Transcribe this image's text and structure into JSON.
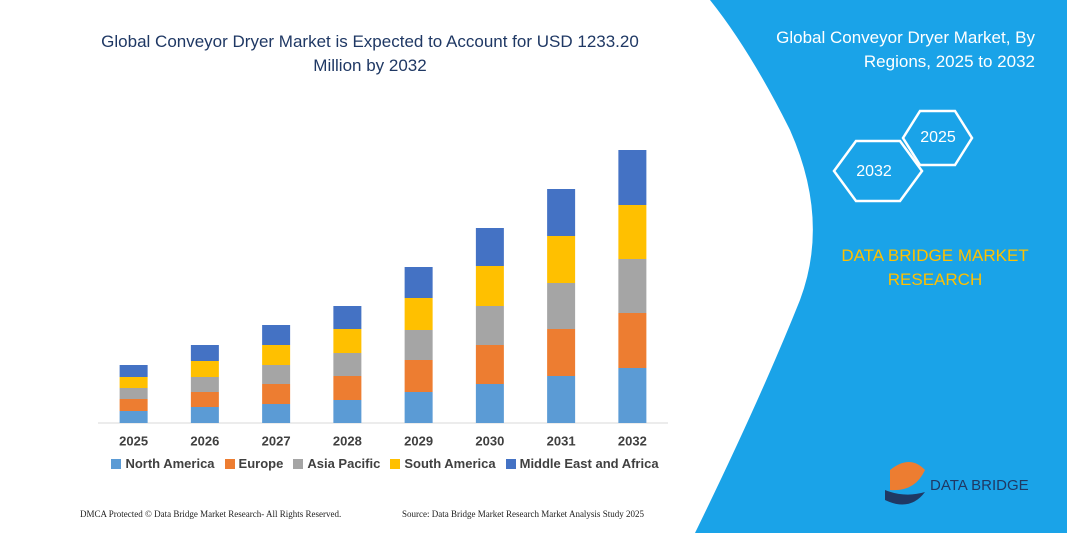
{
  "chart_data": {
    "type": "bar",
    "stacked": true,
    "title": "Global Conveyor Dryer Market is Expected to Account for USD 1233.20 Million by 2032",
    "categories": [
      "2025",
      "2026",
      "2027",
      "2028",
      "2029",
      "2030",
      "2031",
      "2032"
    ],
    "series": [
      {
        "name": "North America",
        "color": "#5b9bd5",
        "values": [
          12,
          16,
          19,
          23,
          31,
          39,
          47,
          55
        ]
      },
      {
        "name": "Europe",
        "color": "#ed7d31",
        "values": [
          12,
          15,
          20,
          24,
          32,
          39,
          47,
          55
        ]
      },
      {
        "name": "Asia Pacific",
        "color": "#a5a5a5",
        "values": [
          11,
          15,
          19,
          23,
          30,
          39,
          46,
          54
        ]
      },
      {
        "name": "South America",
        "color": "#ffc000",
        "values": [
          11,
          16,
          20,
          24,
          32,
          40,
          47,
          54
        ]
      },
      {
        "name": "Middle East and Africa",
        "color": "#4472c4",
        "values": [
          12,
          16,
          20,
          23,
          31,
          38,
          47,
          55
        ]
      }
    ]
  },
  "panel": {
    "title": "Global Conveyor Dryer Market, By Regions, 2025 to 2032",
    "hexagons": [
      "2025",
      "2032"
    ],
    "brand": "DATA BRIDGE MARKET RESEARCH",
    "logo": "DATA BRIDGE"
  },
  "footer": {
    "left": "DMCA Protected © Data Bridge Market Research- All Rights Reserved.",
    "right": "Source: Data Bridge Market Research Market Analysis Study 2025"
  }
}
